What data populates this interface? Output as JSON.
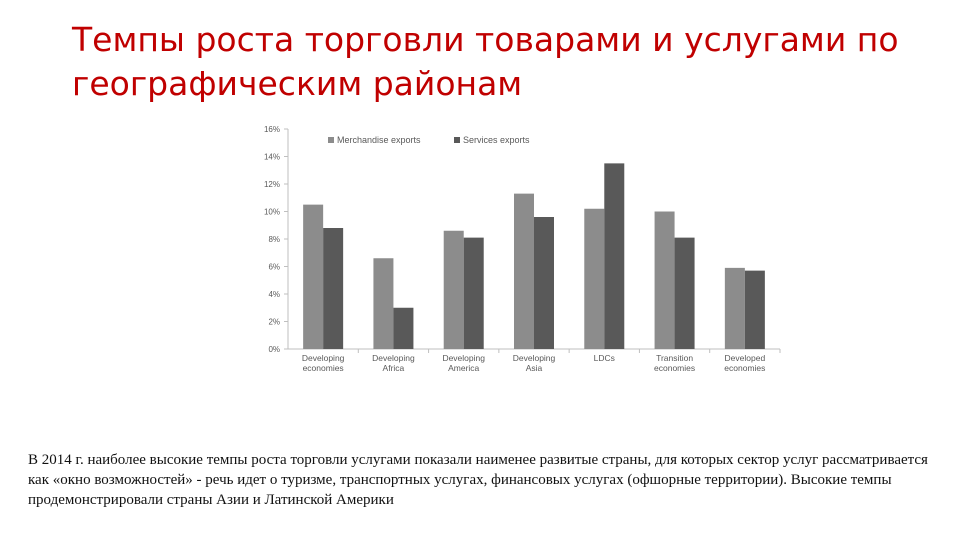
{
  "title": {
    "line1": "Темпы роста торговли товарами и услугами по",
    "line2": "географическим  районам"
  },
  "colors": {
    "title": "#c00000",
    "merchandise": "#8c8c8c",
    "services": "#595959",
    "axis": "#bfbfbf"
  },
  "chart_data": {
    "type": "bar",
    "categories": [
      [
        "Developing",
        "economies"
      ],
      [
        "Developing",
        "Africa"
      ],
      [
        "Developing",
        "America"
      ],
      [
        "Developing",
        "Asia"
      ],
      [
        "LDCs"
      ],
      [
        "Transition",
        "economies"
      ],
      [
        "Developed",
        "economies"
      ]
    ],
    "series": [
      {
        "name": "Merchandise exports",
        "values": [
          10.5,
          6.6,
          8.6,
          11.3,
          10.2,
          10.0,
          5.9
        ]
      },
      {
        "name": "Services exports",
        "values": [
          8.8,
          3.0,
          8.1,
          9.6,
          13.5,
          8.1,
          5.7
        ]
      }
    ],
    "yticks": [
      "0%",
      "2%",
      "4%",
      "6%",
      "8%",
      "10%",
      "12%",
      "14%",
      "16%"
    ],
    "ylim": [
      0,
      16
    ],
    "legend": "top-left",
    "grid": false
  },
  "caption": "В 2014 г. наиболее высокие темпы роста торговли услугами показали наименее развитые страны, для которых сектор услуг  рассматривается как «окно возможностей» - речь идет о туризме, транспортных услугах, финансовых услугах (офшорные территории). Высокие темпы продемонстрировали страны Азии и Латинской Америки"
}
